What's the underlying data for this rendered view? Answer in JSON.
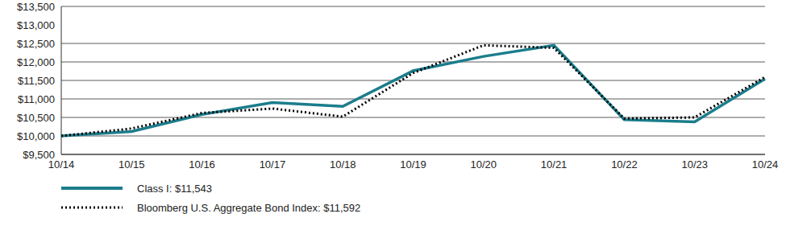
{
  "chart_data": {
    "type": "line",
    "categories": [
      "10/14",
      "10/15",
      "10/16",
      "10/17",
      "10/18",
      "10/19",
      "10/20",
      "10/21",
      "10/22",
      "10/23",
      "10/24"
    ],
    "series": [
      {
        "name": "Class I: $11,543",
        "color": "#1b7d8c",
        "line_style": "solid",
        "values": [
          10000,
          10120,
          10580,
          10900,
          10800,
          11760,
          12150,
          12450,
          10440,
          10380,
          11543
        ]
      },
      {
        "name": "Bloomberg U.S. Aggregate Bond Index: $11,592",
        "color": "#000000",
        "line_style": "dotted",
        "values": [
          10000,
          10200,
          10620,
          10740,
          10520,
          11700,
          12450,
          12380,
          10470,
          10500,
          11592
        ]
      }
    ],
    "ylim": [
      9500,
      13500
    ],
    "yticks": [
      {
        "value": 9500,
        "label": "$9,500"
      },
      {
        "value": 10000,
        "label": "$10,000"
      },
      {
        "value": 10500,
        "label": "$10,500"
      },
      {
        "value": 11000,
        "label": "$11,000"
      },
      {
        "value": 11500,
        "label": "$11,500"
      },
      {
        "value": 12000,
        "label": "$12,000"
      },
      {
        "value": 12500,
        "label": "$12,500"
      },
      {
        "value": 13000,
        "label": "$13,000"
      },
      {
        "value": 13500,
        "label": "$13,500"
      }
    ],
    "grid": true,
    "legend": "bottom"
  }
}
